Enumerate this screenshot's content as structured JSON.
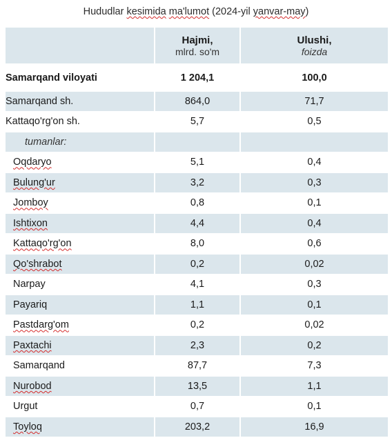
{
  "title": {
    "pre": "Hududlar ",
    "kes": "kesimida",
    "mid": " ",
    "malumot": "ma'lumot",
    "post1": " (2024-yil ",
    "yanvar": "yanvar-may",
    "post2": ")"
  },
  "columns": {
    "hajmi": "Hajmi,",
    "hajmi_unit": "mlrd. so'm",
    "ulushi": "Ulushi,",
    "ulushi_unit": "foizda"
  },
  "total": {
    "name": "Samarqand viloyati",
    "hajmi": "1 204,1",
    "ulushi": "100,0"
  },
  "rows": [
    {
      "name": "Samarqand  sh.",
      "hajmi": "864,0",
      "ulushi": "71,7",
      "shade": true,
      "indent": false,
      "squiggle": false
    },
    {
      "name": "Kattaqo'rg'on sh.",
      "hajmi": "5,7",
      "ulushi": "0,5",
      "shade": false,
      "indent": false,
      "squiggle": false
    }
  ],
  "subheader": "tumanlar:",
  "districts": [
    {
      "name": "Oqdaryo",
      "hajmi": "5,1",
      "ulushi": "0,4",
      "shade": false,
      "squiggle": true
    },
    {
      "name": "Bulung'ur",
      "hajmi": "3,2",
      "ulushi": "0,3",
      "shade": true,
      "squiggle": true
    },
    {
      "name": "Jomboy",
      "hajmi": "0,8",
      "ulushi": "0,1",
      "shade": false,
      "squiggle": true
    },
    {
      "name": "Ishtixon",
      "hajmi": "4,4",
      "ulushi": "0,4",
      "shade": true,
      "squiggle": true
    },
    {
      "name": "Kattaqo'rg'on",
      "hajmi": "8,0",
      "ulushi": "0,6",
      "shade": false,
      "squiggle": true
    },
    {
      "name": "Qo'shrabot",
      "hajmi": "0,2",
      "ulushi": "0,02",
      "shade": true,
      "squiggle": true
    },
    {
      "name": "Narpay",
      "hajmi": "4,1",
      "ulushi": "0,3",
      "shade": false,
      "squiggle": false
    },
    {
      "name": "Payariq",
      "hajmi": "1,1",
      "ulushi": "0,1",
      "shade": true,
      "squiggle": false
    },
    {
      "name": "Pastdarg'om",
      "hajmi": "0,2",
      "ulushi": "0,02",
      "shade": false,
      "squiggle": true
    },
    {
      "name": "Paxtachi",
      "hajmi": "2,3",
      "ulushi": "0,2",
      "shade": true,
      "squiggle": true
    },
    {
      "name": "Samarqand",
      "hajmi": "87,7",
      "ulushi": "7,3",
      "shade": false,
      "squiggle": false
    },
    {
      "name": "Nurobod",
      "hajmi": "13,5",
      "ulushi": "1,1",
      "shade": true,
      "squiggle": true
    },
    {
      "name": "Urgut",
      "hajmi": "0,7",
      "ulushi": "0,1",
      "shade": false,
      "squiggle": false
    },
    {
      "name": "Toyloq",
      "hajmi": "203,2",
      "ulushi": "16,9",
      "shade": true,
      "squiggle": true
    }
  ],
  "colors": {
    "shade": "#dbe6ec",
    "spellcheck": "#d42a2a"
  }
}
